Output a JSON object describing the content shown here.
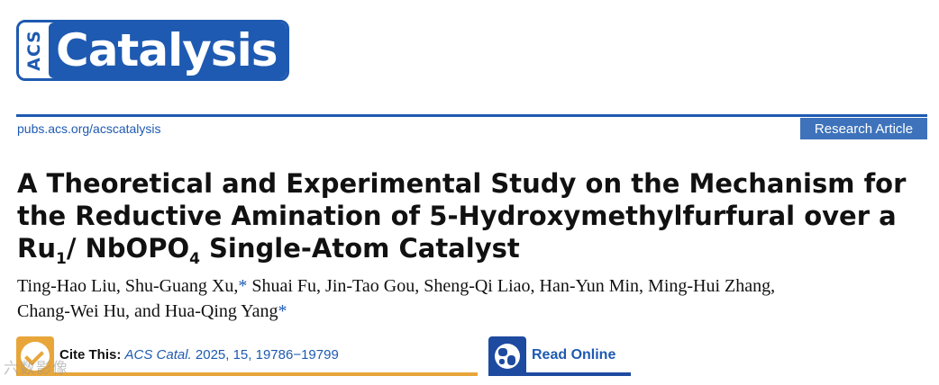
{
  "logo": {
    "acs": "ACS",
    "name": "Catalysis"
  },
  "header": {
    "url": "pubs.acs.org/acscatalysis",
    "article_type": "Research Article"
  },
  "title": {
    "part1": "A Theoretical and Experimental Study on the Mechanism for the Reductive Amination of 5-Hydroxymethylfurfural over a Ru",
    "sub1": "1",
    "part2": "/ NbOPO",
    "sub2": "4",
    "part3": " Single-Atom Catalyst"
  },
  "authors": {
    "line1_a": "Ting-Hao Liu, Shu-Guang Xu,",
    "star": "*",
    "line1_b": " Shuai Fu, Jin-Tao Gou, Sheng-Qi Liao, Han-Yun Min, Ming-Hui Zhang,",
    "line2_a": "Chang-Wei Hu, and Hua-Qing Yang",
    "star2": "*"
  },
  "cite": {
    "label": "Cite This:",
    "journal": "ACS Catal.",
    "details": " 2025, 15, 19786−19799"
  },
  "read_online": {
    "label": "Read Online"
  },
  "watermark": "六数影像",
  "colors": {
    "brand_blue": "#1e5ab1",
    "cite_orange": "#e8a63a",
    "read_blue": "#1e4aa0"
  }
}
